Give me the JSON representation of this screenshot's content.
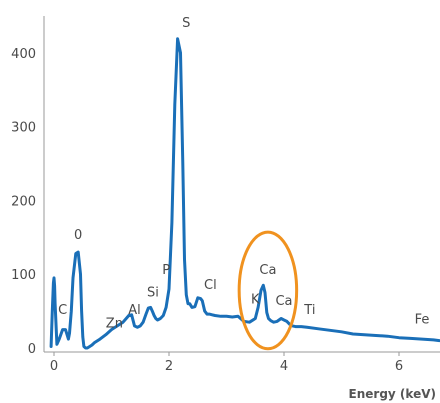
{
  "chart_data": {
    "type": "line",
    "title": "",
    "xlabel": "Energy (keV)",
    "ylabel": "",
    "xlim": [
      -0.1,
      6.7
    ],
    "ylim": [
      0,
      440
    ],
    "x_ticks": [
      "0",
      "2",
      "4",
      "6"
    ],
    "x_tick_values": [
      0,
      2,
      4,
      6
    ],
    "y_ticks": [
      "0",
      "100",
      "200",
      "300",
      "400"
    ],
    "y_tick_values": [
      0,
      100,
      200,
      300,
      400
    ],
    "grid": false,
    "series": [
      {
        "color": "#1a6fb8",
        "x": [
          -0.05,
          -0.03,
          -0.01,
          0.0,
          0.01,
          0.02,
          0.05,
          0.09,
          0.15,
          0.2,
          0.25,
          0.27,
          0.3,
          0.33,
          0.38,
          0.42,
          0.46,
          0.48,
          0.5,
          0.52,
          0.55,
          0.58,
          0.62,
          0.66,
          0.7,
          0.8,
          0.9,
          1.0,
          1.1,
          1.2,
          1.3,
          1.35,
          1.4,
          1.45,
          1.5,
          1.55,
          1.6,
          1.64,
          1.68,
          1.71,
          1.74,
          1.77,
          1.8,
          1.85,
          1.9,
          1.95,
          2.0,
          2.05,
          2.1,
          2.15,
          2.2,
          2.24,
          2.27,
          2.3,
          2.33,
          2.36,
          2.4,
          2.45,
          2.5,
          2.55,
          2.58,
          2.62,
          2.66,
          2.7,
          2.75,
          2.8,
          2.9,
          3.0,
          3.1,
          3.2,
          3.3,
          3.4,
          3.5,
          3.55,
          3.6,
          3.64,
          3.67,
          3.7,
          3.73,
          3.77,
          3.82,
          3.88,
          3.95,
          4.0,
          4.05,
          4.1,
          4.15,
          4.2,
          4.3,
          4.4,
          4.6,
          4.8,
          5.0,
          5.2,
          5.4,
          5.6,
          5.8,
          6.0,
          6.2,
          6.4,
          6.6,
          6.7
        ],
        "values": [
          2,
          50,
          88,
          95,
          84,
          60,
          5,
          12,
          25,
          25,
          12,
          20,
          50,
          95,
          128,
          130,
          100,
          50,
          15,
          2,
          0,
          0,
          2,
          4,
          7,
          12,
          18,
          25,
          30,
          35,
          44,
          45,
          30,
          28,
          30,
          35,
          46,
          54,
          55,
          50,
          44,
          40,
          38,
          40,
          44,
          55,
          80,
          170,
          330,
          419,
          400,
          250,
          120,
          72,
          60,
          60,
          55,
          56,
          68,
          67,
          64,
          50,
          46,
          46,
          45,
          44,
          43,
          43,
          42,
          43,
          36,
          35,
          40,
          55,
          78,
          85,
          75,
          48,
          40,
          37,
          35,
          36,
          40,
          38,
          36,
          32,
          30,
          29,
          29,
          28,
          26,
          24,
          22,
          19,
          18,
          17,
          16,
          14,
          13,
          12,
          11,
          10
        ]
      }
    ],
    "annotations": [
      {
        "text": "S",
        "x": 2.3,
        "y": 435
      },
      {
        "text": "0",
        "x": 0.42,
        "y": 148
      },
      {
        "text": "C",
        "x": 0.15,
        "y": 46
      },
      {
        "text": "Zn",
        "x": 1.05,
        "y": 28
      },
      {
        "text": "Al",
        "x": 1.4,
        "y": 46
      },
      {
        "text": "Si",
        "x": 1.72,
        "y": 70
      },
      {
        "text": "P",
        "x": 1.95,
        "y": 100
      },
      {
        "text": "Cl",
        "x": 2.72,
        "y": 80
      },
      {
        "text": "K",
        "x": 3.5,
        "y": 60
      },
      {
        "text": "Ca",
        "x": 3.72,
        "y": 100
      },
      {
        "text": "Ca",
        "x": 4.0,
        "y": 58
      },
      {
        "text": "Ti",
        "x": 4.45,
        "y": 46
      },
      {
        "text": "Fe",
        "x": 6.4,
        "y": 33
      }
    ],
    "highlight_ellipse": {
      "color": "#f0921f",
      "cx": 3.72,
      "cy": 78,
      "rx": 0.5,
      "ry": 79
    }
  }
}
